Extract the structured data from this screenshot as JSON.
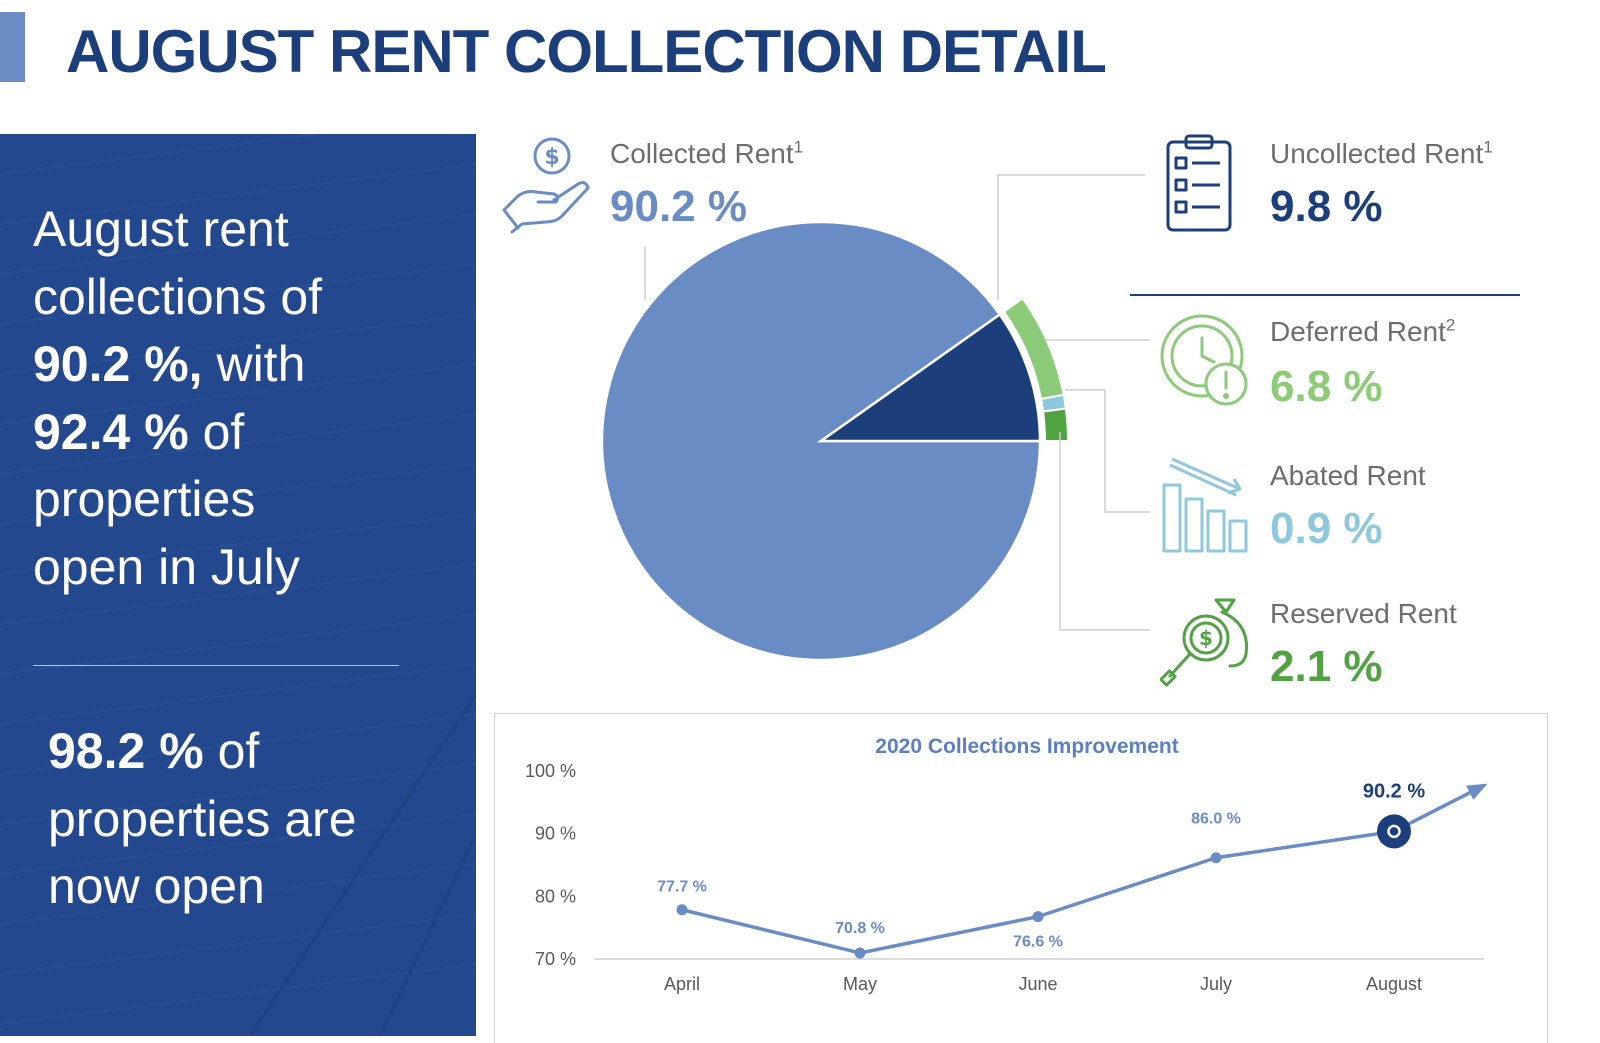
{
  "page": {
    "title": "AUGUST RENT COLLECTION DETAIL"
  },
  "summary": {
    "line1": "August rent",
    "line2": "collections of",
    "line3_value": "90.2 %,",
    "line3_rest": " with",
    "line4_value": "92.4 %",
    "line4_rest": " of",
    "line5": "properties",
    "line6": "open in July",
    "open_value": "98.2 %",
    "open_rest1": " of",
    "open_line2": "properties are",
    "open_line3": "now open"
  },
  "legend": {
    "collected": {
      "label": "Collected Rent",
      "note": "1",
      "value": "90.2 %",
      "color": "#6a8cc5",
      "icon": "hand-dollar-icon"
    },
    "uncollected": {
      "label": "Uncollected Rent",
      "note": "1",
      "value": "9.8 %",
      "color": "#1c3f7c",
      "icon": "clipboard-list-icon"
    },
    "deferred": {
      "label": "Deferred Rent",
      "note": "2",
      "value": "6.8 %",
      "color": "#8ccb78",
      "icon": "clock-alert-icon"
    },
    "abated": {
      "label": "Abated Rent",
      "note": "",
      "value": "0.9 %",
      "color": "#8ec8dc",
      "icon": "declining-bars-icon"
    },
    "reserved": {
      "label": "Reserved Rent",
      "note": "",
      "value": "2.1 %",
      "color": "#50a243",
      "icon": "money-bag-magnifier-icon"
    }
  },
  "chart_data": [
    {
      "type": "pie",
      "slices": [
        {
          "label": "Collected Rent",
          "value": 90.2,
          "color": "#6a8cc5"
        },
        {
          "label": "Uncollected Rent",
          "value": 9.8,
          "color": "#1c3f7c"
        }
      ],
      "breakdown_of": "Uncollected Rent",
      "breakdown": [
        {
          "label": "Deferred Rent",
          "value": 6.8,
          "color": "#8ccb78"
        },
        {
          "label": "Abated Rent",
          "value": 0.9,
          "color": "#8ec8dc"
        },
        {
          "label": "Reserved Rent",
          "value": 2.1,
          "color": "#50a243"
        }
      ]
    },
    {
      "type": "line",
      "title": "2020 Collections Improvement",
      "categories": [
        "April",
        "May",
        "June",
        "July",
        "August"
      ],
      "series": [
        {
          "values": [
            77.7,
            70.8,
            76.6,
            86.0,
            90.2
          ],
          "color": "#6a8cc5"
        }
      ],
      "data_labels": [
        "77.7 %",
        "70.8 %",
        "76.6 %",
        "86.0 %",
        "90.2 %"
      ],
      "highlight": {
        "category": "August",
        "color": "#1c3f7c"
      },
      "y_ticks": [
        "70 %",
        "80 %",
        "90 %",
        "100 %"
      ],
      "ylim": [
        70,
        100
      ],
      "grid": false
    }
  ]
}
